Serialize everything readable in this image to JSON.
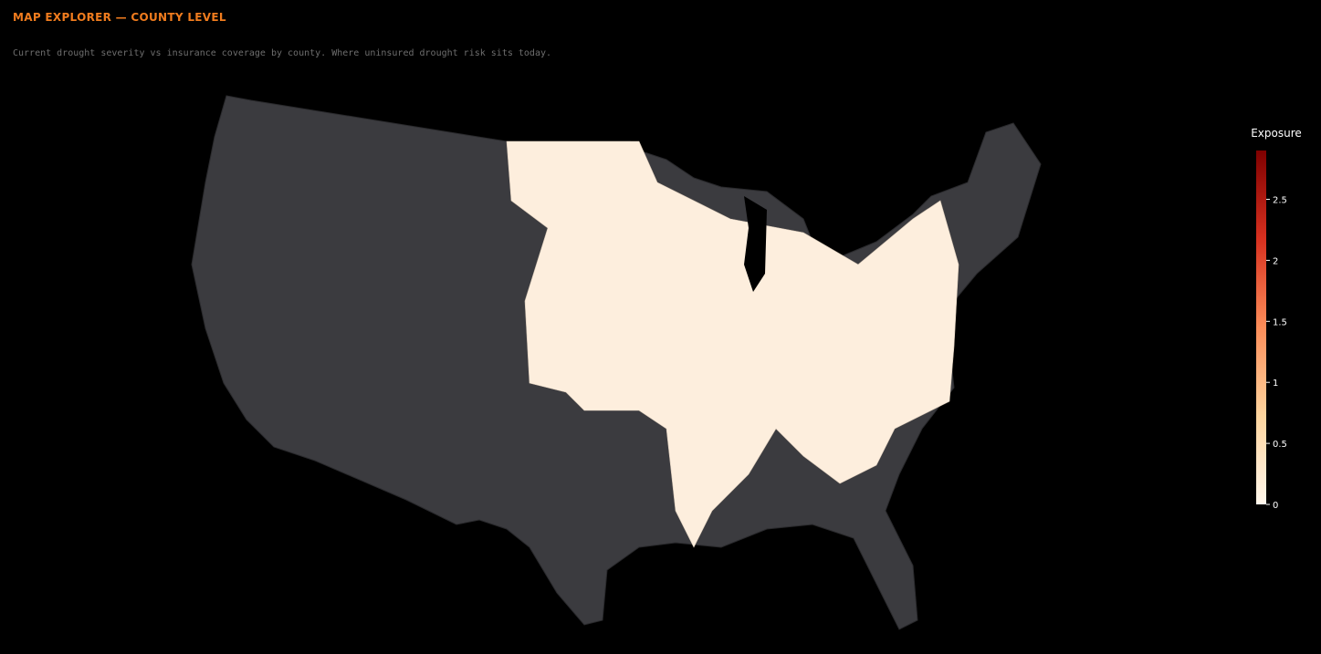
{
  "header": {
    "title": "MAP EXPLORER — COUNTY LEVEL",
    "subtitle": "Current drought severity vs insurance coverage by county. Where uninsured drought risk sits today."
  },
  "colorbar": {
    "title": "Exposure",
    "range": [
      0,
      2.9
    ],
    "ticks": [
      0,
      0.5,
      1,
      1.5,
      2,
      2.5
    ],
    "colors": [
      "#fff7ec",
      "#fdd49e",
      "#fc8d59",
      "#d7301f",
      "#7f0000"
    ]
  }
}
